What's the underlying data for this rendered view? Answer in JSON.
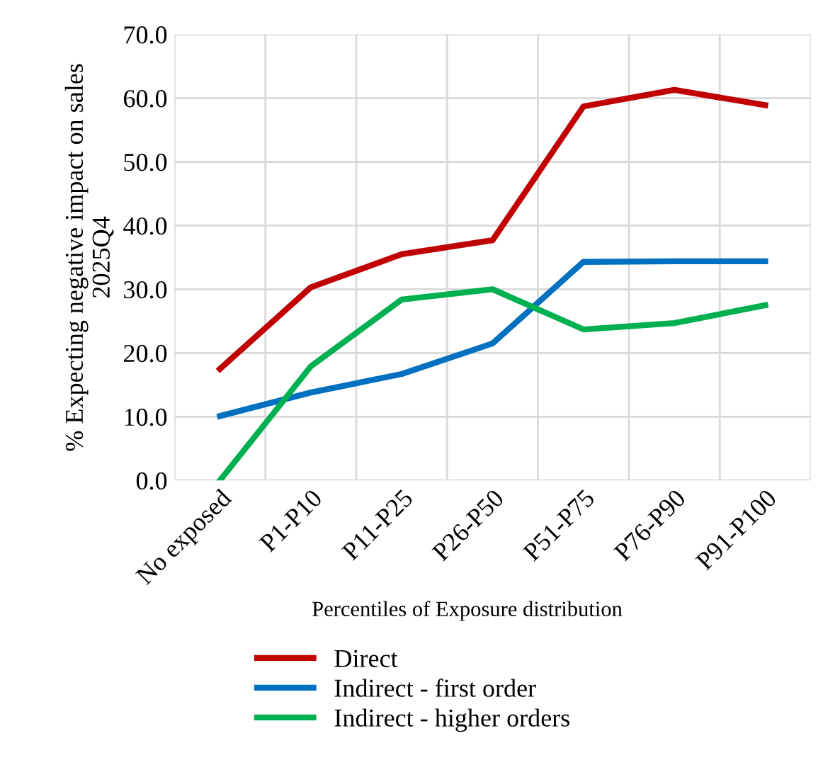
{
  "chart_data": {
    "type": "line",
    "xlabel": "Percentiles of Exposure distribution",
    "ylabel": "% Expecting negative impact on sales\n2025Q4",
    "categories": [
      "No exposed",
      "P1-P10",
      "P11-P25",
      "P26-P50",
      "P51-P75",
      "P76-P90",
      "P91-P100"
    ],
    "series": [
      {
        "name": "Direct",
        "color": "#c00000",
        "values": [
          17.5,
          30.3,
          35.5,
          37.7,
          58.7,
          61.3,
          58.9
        ]
      },
      {
        "name": "Indirect - first order",
        "color": "#0070c0",
        "values": [
          10.1,
          13.8,
          16.7,
          21.5,
          34.3,
          34.4,
          34.4
        ]
      },
      {
        "name": "Indirect - higher orders",
        "color": "#00b050",
        "values": [
          0.0,
          17.9,
          28.4,
          30.0,
          23.7,
          24.7,
          27.5
        ]
      }
    ],
    "ylim": [
      0,
      70
    ],
    "yticks": [
      {
        "value": 0,
        "label": "0.0"
      },
      {
        "value": 10,
        "label": "10.0"
      },
      {
        "value": 20,
        "label": "20.0"
      },
      {
        "value": 30,
        "label": "30.0"
      },
      {
        "value": 40,
        "label": "40.0"
      },
      {
        "value": 50,
        "label": "50.0"
      },
      {
        "value": 60,
        "label": "60.0"
      },
      {
        "value": 70,
        "label": "70.0"
      }
    ],
    "grid": true,
    "legend": "bottom",
    "marker": "none",
    "line_style": "solid"
  }
}
